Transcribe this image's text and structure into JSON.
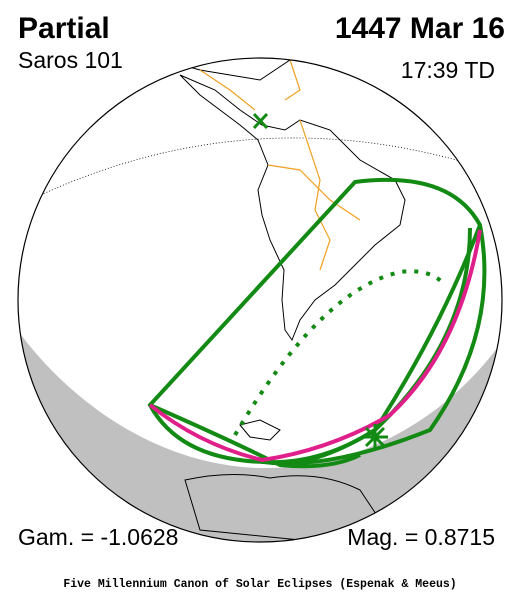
{
  "header": {
    "title": "Partial",
    "date": "1447 Mar 16",
    "saros": "Saros 101",
    "time": "17:39 TD"
  },
  "footer": {
    "gamma": "Gam. = -1.0628",
    "magnitude": "Mag. = 0.8715",
    "credit": "Five Millennium Canon of Solar Eclipses (Espenak & Meeus)"
  }
}
